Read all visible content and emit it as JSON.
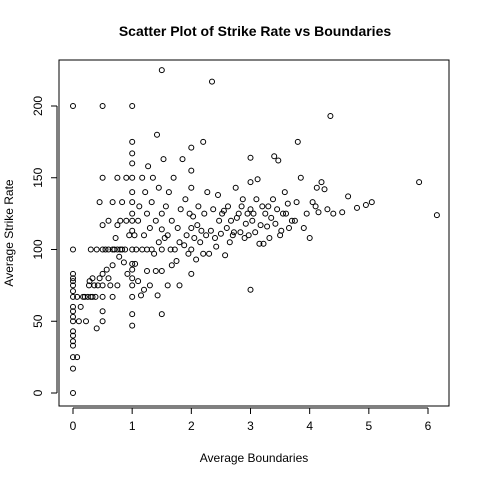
{
  "chart_data": {
    "type": "scatter",
    "title": "Scatter Plot of Strike Rate vs Boundaries",
    "xlabel": "Average Boundaries",
    "ylabel": "Average Strike Rate",
    "xlim": [
      0,
      6.2
    ],
    "ylim": [
      0,
      225
    ],
    "xticks": [
      0,
      1,
      2,
      3,
      4,
      5,
      6
    ],
    "yticks": [
      0,
      50,
      100,
      150,
      200
    ],
    "grid": false,
    "legend": "none",
    "marker": "open-circle",
    "color": "#000000",
    "points": [
      [
        0,
        0
      ],
      [
        0,
        17
      ],
      [
        0,
        25
      ],
      [
        0,
        33
      ],
      [
        0,
        36
      ],
      [
        0,
        40
      ],
      [
        0,
        43
      ],
      [
        0,
        50
      ],
      [
        0,
        53
      ],
      [
        0,
        57
      ],
      [
        0,
        60
      ],
      [
        0,
        67
      ],
      [
        0,
        71
      ],
      [
        0,
        75
      ],
      [
        0,
        78
      ],
      [
        0,
        80
      ],
      [
        0,
        83
      ],
      [
        0,
        100
      ],
      [
        0,
        200
      ],
      [
        0.07,
        25
      ],
      [
        0.07,
        67
      ],
      [
        0.1,
        50
      ],
      [
        0.13,
        60
      ],
      [
        0.17,
        67
      ],
      [
        0.2,
        67
      ],
      [
        0.22,
        50
      ],
      [
        0.25,
        67
      ],
      [
        0.27,
        75
      ],
      [
        0.28,
        78
      ],
      [
        0.3,
        67
      ],
      [
        0.3,
        100
      ],
      [
        0.33,
        67
      ],
      [
        0.33,
        80
      ],
      [
        0.36,
        75
      ],
      [
        0.38,
        67
      ],
      [
        0.4,
        45
      ],
      [
        0.4,
        100
      ],
      [
        0.42,
        75
      ],
      [
        0.45,
        80
      ],
      [
        0.45,
        133
      ],
      [
        0.5,
        50
      ],
      [
        0.5,
        57
      ],
      [
        0.5,
        67
      ],
      [
        0.5,
        75
      ],
      [
        0.5,
        83
      ],
      [
        0.5,
        100
      ],
      [
        0.5,
        117
      ],
      [
        0.5,
        150
      ],
      [
        0.5,
        200
      ],
      [
        0.55,
        100
      ],
      [
        0.57,
        86
      ],
      [
        0.6,
        80
      ],
      [
        0.6,
        100
      ],
      [
        0.6,
        120
      ],
      [
        0.63,
        75
      ],
      [
        0.67,
        67
      ],
      [
        0.67,
        89
      ],
      [
        0.67,
        100
      ],
      [
        0.67,
        133
      ],
      [
        0.7,
        100
      ],
      [
        0.72,
        108
      ],
      [
        0.75,
        75
      ],
      [
        0.75,
        100
      ],
      [
        0.75,
        117
      ],
      [
        0.75,
        150
      ],
      [
        0.78,
        95
      ],
      [
        0.8,
        100
      ],
      [
        0.8,
        120
      ],
      [
        0.83,
        100
      ],
      [
        0.83,
        133
      ],
      [
        0.86,
        91
      ],
      [
        0.88,
        100
      ],
      [
        0.9,
        120
      ],
      [
        0.9,
        150
      ],
      [
        0.92,
        83
      ],
      [
        0.95,
        110
      ],
      [
        1,
        47
      ],
      [
        1,
        55
      ],
      [
        1,
        67
      ],
      [
        1,
        75
      ],
      [
        1,
        80
      ],
      [
        1,
        86
      ],
      [
        1,
        90
      ],
      [
        1,
        100
      ],
      [
        1,
        113
      ],
      [
        1,
        120
      ],
      [
        1,
        125
      ],
      [
        1,
        133
      ],
      [
        1,
        140
      ],
      [
        1,
        150
      ],
      [
        1,
        160
      ],
      [
        1,
        167
      ],
      [
        1,
        175
      ],
      [
        1,
        200
      ],
      [
        1.04,
        110
      ],
      [
        1.05,
        90
      ],
      [
        1.07,
        100
      ],
      [
        1.1,
        78
      ],
      [
        1.1,
        120
      ],
      [
        1.12,
        130
      ],
      [
        1.15,
        68
      ],
      [
        1.17,
        100
      ],
      [
        1.17,
        150
      ],
      [
        1.2,
        110
      ],
      [
        1.2,
        72
      ],
      [
        1.22,
        140
      ],
      [
        1.25,
        85
      ],
      [
        1.25,
        100
      ],
      [
        1.25,
        125
      ],
      [
        1.27,
        158
      ],
      [
        1.3,
        115
      ],
      [
        1.3,
        75
      ],
      [
        1.33,
        100
      ],
      [
        1.33,
        133
      ],
      [
        1.35,
        150
      ],
      [
        1.37,
        97
      ],
      [
        1.4,
        85
      ],
      [
        1.4,
        120
      ],
      [
        1.42,
        180
      ],
      [
        1.43,
        68
      ],
      [
        1.45,
        105
      ],
      [
        1.45,
        143
      ],
      [
        1.5,
        55
      ],
      [
        1.5,
        85
      ],
      [
        1.5,
        100
      ],
      [
        1.5,
        114
      ],
      [
        1.5,
        125
      ],
      [
        1.5,
        225
      ],
      [
        1.53,
        163
      ],
      [
        1.55,
        108
      ],
      [
        1.57,
        130
      ],
      [
        1.6,
        75
      ],
      [
        1.6,
        110
      ],
      [
        1.62,
        140
      ],
      [
        1.65,
        100
      ],
      [
        1.67,
        89
      ],
      [
        1.67,
        120
      ],
      [
        1.7,
        150
      ],
      [
        1.72,
        100
      ],
      [
        1.75,
        92
      ],
      [
        1.77,
        115
      ],
      [
        1.8,
        75
      ],
      [
        1.8,
        105
      ],
      [
        1.82,
        128
      ],
      [
        1.85,
        163
      ],
      [
        1.88,
        103
      ],
      [
        1.9,
        135
      ],
      [
        1.92,
        110
      ],
      [
        1.95,
        97
      ],
      [
        1.97,
        125
      ],
      [
        2,
        83
      ],
      [
        2,
        100
      ],
      [
        2,
        115
      ],
      [
        2,
        143
      ],
      [
        2,
        155
      ],
      [
        2,
        171
      ],
      [
        2.03,
        123
      ],
      [
        2.05,
        108
      ],
      [
        2.08,
        93
      ],
      [
        2.1,
        117
      ],
      [
        2.12,
        130
      ],
      [
        2.15,
        105
      ],
      [
        2.17,
        113
      ],
      [
        2.2,
        97
      ],
      [
        2.2,
        175
      ],
      [
        2.22,
        125
      ],
      [
        2.25,
        110
      ],
      [
        2.27,
        140
      ],
      [
        2.3,
        97
      ],
      [
        2.33,
        113
      ],
      [
        2.35,
        217
      ],
      [
        2.37,
        128
      ],
      [
        2.4,
        108
      ],
      [
        2.42,
        102
      ],
      [
        2.45,
        138
      ],
      [
        2.47,
        120
      ],
      [
        2.5,
        111
      ],
      [
        2.52,
        125
      ],
      [
        2.55,
        127
      ],
      [
        2.57,
        96
      ],
      [
        2.6,
        115
      ],
      [
        2.62,
        130
      ],
      [
        2.65,
        105
      ],
      [
        2.67,
        120
      ],
      [
        2.7,
        110
      ],
      [
        2.72,
        112
      ],
      [
        2.75,
        143
      ],
      [
        2.77,
        122
      ],
      [
        2.8,
        125
      ],
      [
        2.83,
        112
      ],
      [
        2.85,
        130
      ],
      [
        2.87,
        135
      ],
      [
        2.9,
        108
      ],
      [
        2.92,
        118
      ],
      [
        2.95,
        125
      ],
      [
        2.97,
        110
      ],
      [
        3,
        72
      ],
      [
        3,
        128
      ],
      [
        3,
        147
      ],
      [
        3,
        164
      ],
      [
        3.03,
        120
      ],
      [
        3.05,
        125
      ],
      [
        3.08,
        112
      ],
      [
        3.1,
        135
      ],
      [
        3.12,
        149
      ],
      [
        3.15,
        104
      ],
      [
        3.17,
        117
      ],
      [
        3.2,
        130
      ],
      [
        3.22,
        104
      ],
      [
        3.25,
        125
      ],
      [
        3.28,
        116
      ],
      [
        3.3,
        130
      ],
      [
        3.32,
        108
      ],
      [
        3.35,
        122
      ],
      [
        3.38,
        135
      ],
      [
        3.4,
        165
      ],
      [
        3.42,
        118
      ],
      [
        3.45,
        128
      ],
      [
        3.47,
        162
      ],
      [
        3.5,
        110
      ],
      [
        3.52,
        113
      ],
      [
        3.55,
        125
      ],
      [
        3.58,
        140
      ],
      [
        3.6,
        125
      ],
      [
        3.63,
        132
      ],
      [
        3.65,
        115
      ],
      [
        3.7,
        120
      ],
      [
        3.75,
        120
      ],
      [
        3.78,
        133
      ],
      [
        3.8,
        175
      ],
      [
        3.85,
        150
      ],
      [
        3.9,
        115
      ],
      [
        3.95,
        125
      ],
      [
        4,
        108
      ],
      [
        4.05,
        133
      ],
      [
        4.1,
        130
      ],
      [
        4.12,
        143
      ],
      [
        4.15,
        126
      ],
      [
        4.2,
        147
      ],
      [
        4.25,
        142
      ],
      [
        4.3,
        128
      ],
      [
        4.35,
        193
      ],
      [
        4.4,
        125
      ],
      [
        4.55,
        126
      ],
      [
        4.65,
        137
      ],
      [
        4.8,
        129
      ],
      [
        4.95,
        131
      ],
      [
        5.05,
        133
      ],
      [
        5.85,
        147
      ],
      [
        6.15,
        124
      ]
    ]
  }
}
